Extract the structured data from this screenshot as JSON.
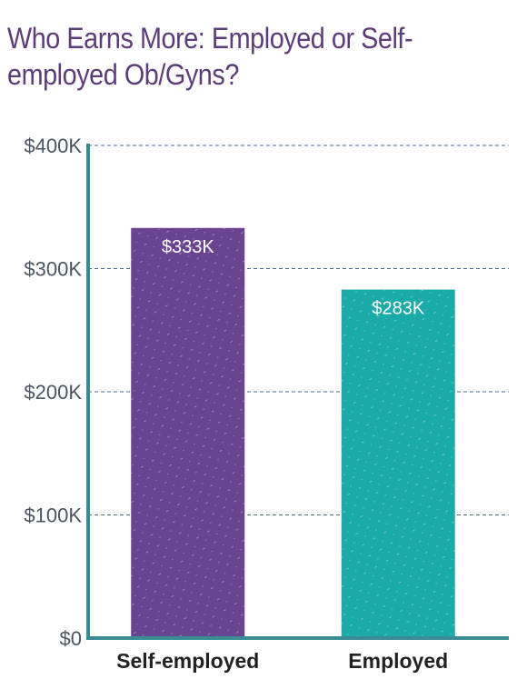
{
  "title": "Who Earns More: Employed or Self-employed Ob/Gyns?",
  "chart_data": {
    "type": "bar",
    "title": "Who Earns More: Employed or Self-employed Ob/Gyns?",
    "categories": [
      "Self-employed",
      "Employed"
    ],
    "values": [
      333,
      283
    ],
    "data_labels": [
      "$333K",
      "$283K"
    ],
    "y_ticks": [
      0,
      100,
      200,
      300,
      400
    ],
    "y_tick_labels": [
      "$0",
      "$100K",
      "$200K",
      "$300K",
      "$400K"
    ],
    "ylim": [
      0,
      400
    ],
    "grid": true,
    "colors": [
      "#6a4491",
      "#1aaba8"
    ],
    "axis_color": "#3a8c94",
    "grid_color": "#4f6a8a"
  }
}
